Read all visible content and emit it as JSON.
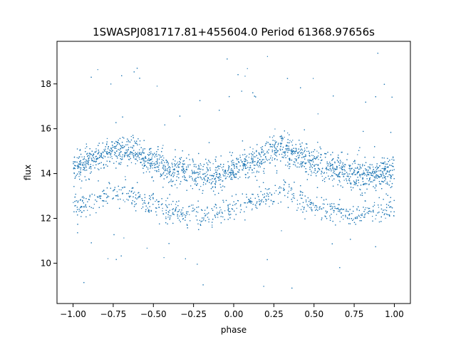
{
  "chart_data": {
    "type": "scatter",
    "title": "1SWASPJ081717.81+455604.0 Period 61368.97656s",
    "xlabel": "phase",
    "ylabel": "flux",
    "xlim": [
      -1.1,
      1.1
    ],
    "ylim": [
      8.2,
      19.9
    ],
    "xticks": [
      -1.0,
      -0.75,
      -0.5,
      -0.25,
      0.0,
      0.25,
      0.5,
      0.75,
      1.0
    ],
    "xtick_labels": [
      "−1.00",
      "−0.75",
      "−0.50",
      "−0.25",
      "0.00",
      "0.25",
      "0.50",
      "0.75",
      "1.00"
    ],
    "yticks": [
      10,
      12,
      14,
      16,
      18
    ],
    "ytick_labels": [
      "10",
      "12",
      "14",
      "16",
      "18"
    ],
    "grid": false,
    "legend": "none",
    "marker_color": "#1f77b4",
    "series": [
      {
        "phase_range": [
          -1.0,
          1.0
        ],
        "bands": [
          {
            "phase": [
              -1.0,
              -0.875,
              -0.75,
              -0.7,
              -0.625,
              -0.5,
              -0.375,
              -0.25,
              -0.125,
              0.0,
              0.125,
              0.25,
              0.3,
              0.375,
              0.5,
              0.625,
              0.75,
              0.875,
              1.0
            ],
            "flux_mean": [
              14.2,
              14.6,
              15.0,
              15.1,
              14.9,
              14.5,
              14.2,
              14.0,
              13.9,
              14.2,
              14.6,
              15.0,
              15.1,
              14.9,
              14.5,
              14.2,
              14.0,
              13.9,
              14.2
            ],
            "flux_spread": 0.55,
            "fraction": 0.7
          },
          {
            "phase": [
              -1.0,
              -0.875,
              -0.75,
              -0.7,
              -0.625,
              -0.5,
              -0.375,
              -0.25,
              -0.125,
              0.0,
              0.125,
              0.25,
              0.3,
              0.375,
              0.5,
              0.625,
              0.75,
              0.875,
              1.0
            ],
            "flux_mean": [
              12.5,
              12.7,
              13.1,
              13.3,
              13.0,
              12.6,
              12.3,
              12.1,
              12.2,
              12.5,
              12.7,
              13.1,
              13.3,
              13.0,
              12.6,
              12.3,
              12.1,
              12.2,
              12.5
            ],
            "flux_spread": 0.45,
            "fraction": 0.3
          }
        ],
        "outlier_flux_range": [
          8.7,
          19.4
        ]
      }
    ]
  }
}
